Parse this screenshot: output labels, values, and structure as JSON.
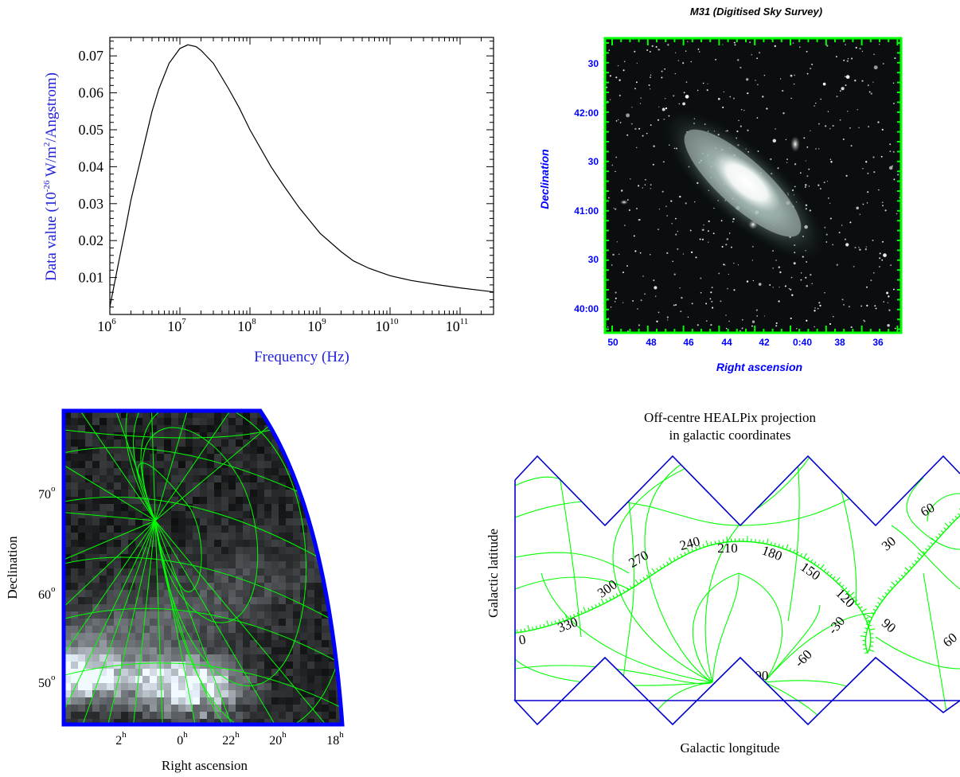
{
  "chart_data": [
    {
      "type": "line",
      "xlabel": "Frequency (Hz)",
      "ylabel_main": "Data value (10",
      "ylabel_exp": "-26",
      "ylabel_mid": " W/m",
      "ylabel_exp2": "2",
      "ylabel_end": "/Angstrom)",
      "x_scale": "log",
      "xlim": [
        1000000,
        300000000000
      ],
      "ylim": [
        0,
        0.075
      ],
      "x_tick_labels": [
        {
          "base": "10",
          "exp": "6",
          "value": 1000000
        },
        {
          "base": "10",
          "exp": "7",
          "value": 10000000
        },
        {
          "base": "10",
          "exp": "8",
          "value": 100000000
        },
        {
          "base": "10",
          "exp": "9",
          "value": 1000000000
        },
        {
          "base": "10",
          "exp": "10",
          "value": 10000000000
        },
        {
          "base": "10",
          "exp": "11",
          "value": 100000000000
        }
      ],
      "y_ticks": [
        0.01,
        0.02,
        0.03,
        0.04,
        0.05,
        0.06,
        0.07
      ],
      "y_tick_labels": [
        "0.01",
        "0.02",
        "0.03",
        "0.04",
        "0.05",
        "0.06",
        "0.07"
      ],
      "series": [
        {
          "x": [
            1000000,
            1300000,
            1700000,
            2000000,
            3000000,
            4000000,
            5000000,
            7000000,
            10000000,
            13000000,
            17000000,
            20000000,
            30000000,
            50000000,
            70000000,
            100000000,
            200000000,
            300000000,
            500000000,
            1000000000,
            2000000000,
            3000000000,
            5000000000,
            10000000000,
            20000000000,
            50000000000,
            100000000000,
            200000000000,
            300000000000
          ],
          "y": [
            0.002,
            0.013,
            0.024,
            0.031,
            0.045,
            0.055,
            0.061,
            0.068,
            0.072,
            0.073,
            0.0725,
            0.0715,
            0.068,
            0.061,
            0.056,
            0.05,
            0.04,
            0.035,
            0.029,
            0.022,
            0.017,
            0.0145,
            0.0125,
            0.0105,
            0.0092,
            0.008,
            0.0072,
            0.0065,
            0.0061
          ]
        }
      ]
    },
    {
      "type": "image",
      "title": "M31 (Digitised Sky Survey)",
      "xlabel": "Right ascension",
      "ylabel": "Declination",
      "x_tick_labels": [
        "50",
        "48",
        "46",
        "44",
        "42",
        "0:40",
        "38",
        "36"
      ],
      "y_tick_labels": [
        "30",
        "42:00",
        "30",
        "41:00",
        "30",
        "40:00"
      ],
      "colors": {
        "axes": "#00ff00",
        "labels": "#0000ff"
      }
    },
    {
      "type": "image",
      "xlabel": "Right ascension",
      "ylabel": "Declination",
      "x_tick_labels": [
        {
          "base": "2",
          "exp": "h"
        },
        {
          "base": "0",
          "exp": "h"
        },
        {
          "base": "22",
          "exp": "h"
        },
        {
          "base": "20",
          "exp": "h"
        },
        {
          "base": "18",
          "exp": "h"
        }
      ],
      "y_tick_labels": [
        {
          "base": "70",
          "exp": "o"
        },
        {
          "base": "60",
          "exp": "o"
        },
        {
          "base": "50",
          "exp": "o"
        }
      ],
      "colors": {
        "grid": "#00ff00",
        "border": "#0000ff"
      }
    },
    {
      "type": "map",
      "title_line1": "Off-centre HEALPix projection",
      "title_line2": "in galactic coordinates",
      "xlabel": "Galactic longitude",
      "ylabel": "Galactic latitude",
      "longitude_labels": [
        "0",
        "330",
        "300",
        "270",
        "240",
        "210",
        "180",
        "150",
        "120",
        "90",
        "60"
      ],
      "latitude_labels": [
        "60",
        "30",
        "-30",
        "-60",
        "-90"
      ],
      "colors": {
        "grid": "#00ff00",
        "border": "#0000cc"
      }
    }
  ]
}
